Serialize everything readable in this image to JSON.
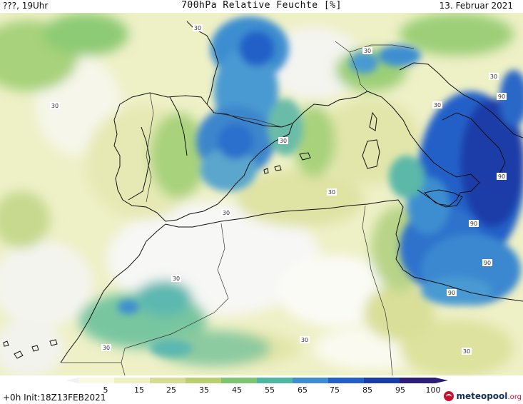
{
  "header": {
    "left": "???, 19Uhr",
    "title": "700hPa Relative Feuchte [%]",
    "date": "13. Februar 2021"
  },
  "footer": {
    "init": "+0h Init:18Z13FEB2021"
  },
  "logo": {
    "name": "meteopool",
    "tld": ".org"
  },
  "colorbar": {
    "ticks": [
      "5",
      "15",
      "25",
      "35",
      "45",
      "55",
      "65",
      "75",
      "85",
      "95",
      "100"
    ],
    "colors": [
      "#f2f2f2",
      "#fafae3",
      "#eef0c0",
      "#d6dc94",
      "#b8cf6e",
      "#7cc66e",
      "#4cb8a0",
      "#3c8ed0",
      "#2060c8",
      "#1a3ca8",
      "#2c1e78"
    ]
  },
  "contour_labels": [
    {
      "text": "30"
    },
    {
      "text": "30"
    },
    {
      "text": "30"
    },
    {
      "text": "30"
    },
    {
      "text": "30"
    },
    {
      "text": "30"
    },
    {
      "text": "30"
    },
    {
      "text": "30"
    },
    {
      "text": "30"
    },
    {
      "text": "30"
    },
    {
      "text": "30"
    },
    {
      "text": "30"
    },
    {
      "text": "90"
    },
    {
      "text": "90"
    },
    {
      "text": "90"
    },
    {
      "text": "90"
    },
    {
      "text": "90"
    }
  ]
}
